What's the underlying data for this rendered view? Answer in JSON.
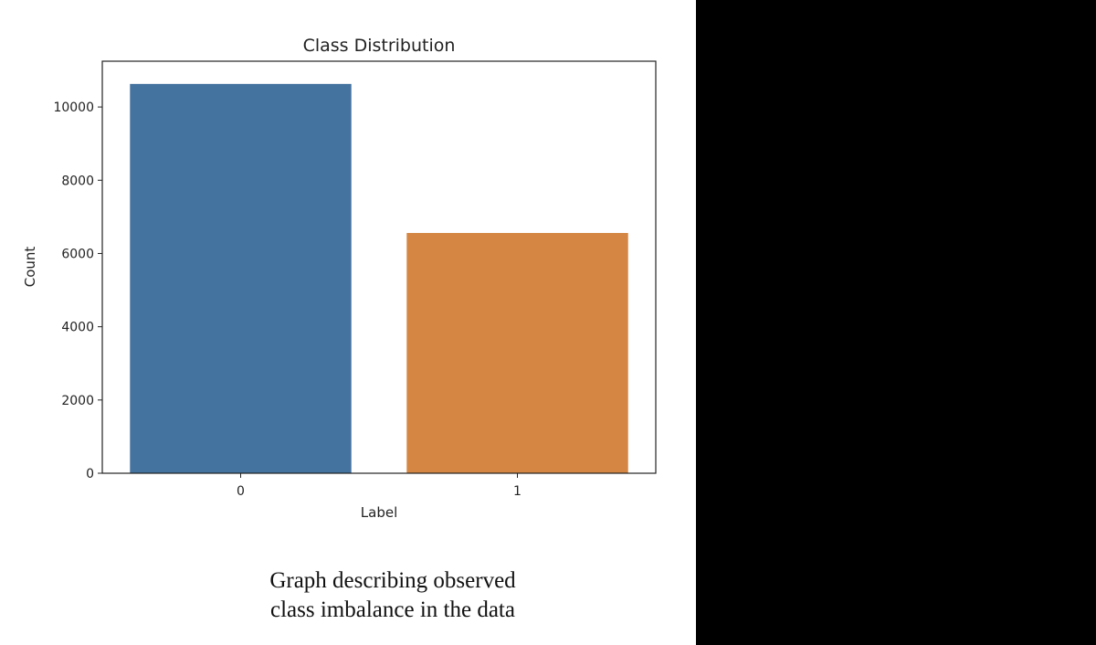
{
  "chart_data": {
    "type": "bar",
    "title": "Class Distribution",
    "xlabel": "Label",
    "ylabel": "Count",
    "categories": [
      "0",
      "1"
    ],
    "values": [
      10630,
      6560
    ],
    "colors": [
      "#44739f",
      "#d48642"
    ],
    "ylim": [
      0,
      11250
    ],
    "yticks": [
      0,
      2000,
      4000,
      6000,
      8000,
      10000
    ],
    "grid": false
  },
  "caption": {
    "line1": "Graph describing observed",
    "line2": "class imbalance in the data"
  }
}
